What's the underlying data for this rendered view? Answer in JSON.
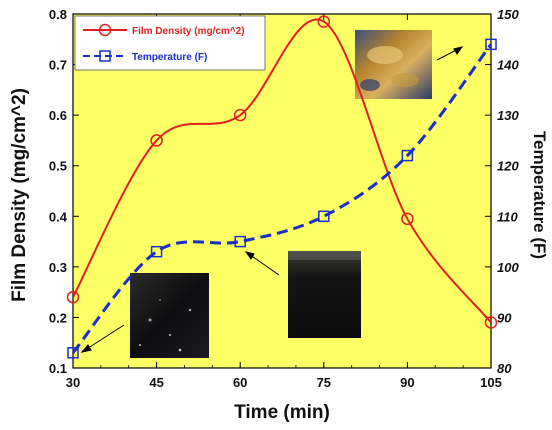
{
  "chart_data": {
    "type": "line",
    "x": [
      30,
      45,
      60,
      75,
      90,
      105
    ],
    "xlabel": "Time (min)",
    "ylabel_left": "Film Density (mg/cm^2)",
    "ylabel_right": "Temperature (F)",
    "xlim": [
      30,
      105
    ],
    "ylim_left": [
      0.1,
      0.8
    ],
    "ylim_right": [
      80,
      150
    ],
    "x_ticks": [
      "30",
      "45",
      "60",
      "75",
      "90",
      "105"
    ],
    "y_left_ticks": [
      "0.1",
      "0.2",
      "0.3",
      "0.4",
      "0.5",
      "0.6",
      "0.7",
      "0.8"
    ],
    "y_right_ticks": [
      "80",
      "90",
      "100",
      "110",
      "120",
      "130",
      "140",
      "150"
    ],
    "grid": false,
    "legend_position": "top-left",
    "background_color": "#ffff66",
    "series": [
      {
        "name": "Film Density (mg/cm^2)",
        "axis": "left",
        "color": "#e02020",
        "line_style": "solid",
        "marker": "circle",
        "values": [
          0.24,
          0.55,
          0.6,
          0.785,
          0.395,
          0.19
        ]
      },
      {
        "name": "Temperature (F)",
        "axis": "right",
        "color": "#1a2ecc",
        "line_style": "dashed",
        "marker": "square",
        "values": [
          83,
          103,
          105,
          110,
          122,
          144
        ]
      }
    ]
  }
}
